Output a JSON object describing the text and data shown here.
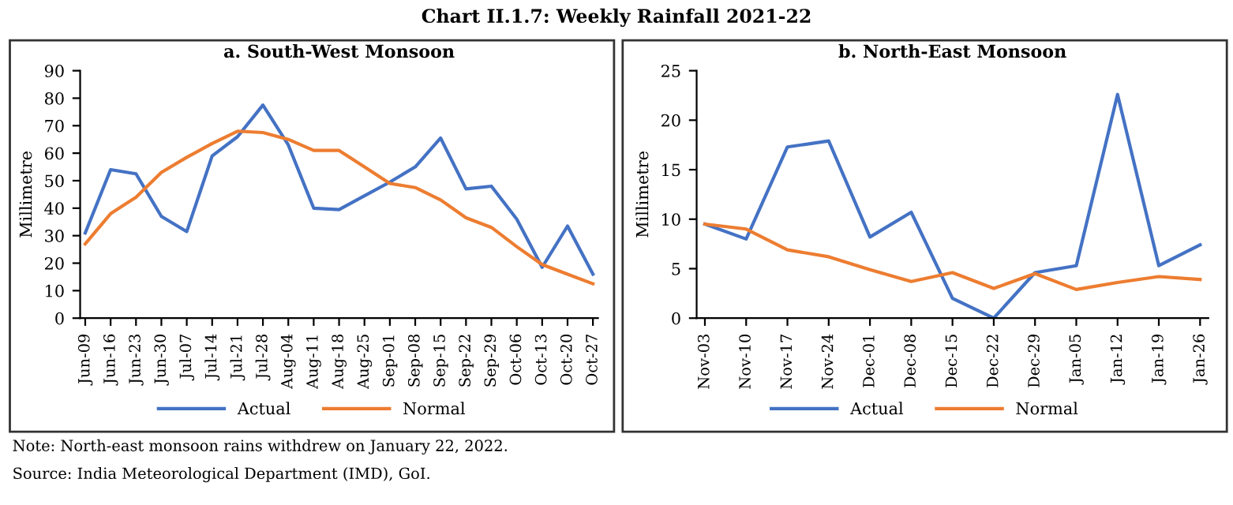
{
  "chart_data": [
    {
      "type": "line",
      "title": "a. South-West Monsoon",
      "ylabel": "Millimetre",
      "annotations": [
        "Chart II.1.7: Weekly Rainfall 2021-22",
        "Note: North-east monsoon rains withdrew on January 22, 2022.",
        "Source: India Meteorological Department (IMD), GoI."
      ],
      "categories": [
        "Jun-09",
        "Jun-16",
        "Jun-23",
        "Jun-30",
        "Jul-07",
        "Jul-14",
        "Jul-21",
        "Jul-28",
        "Aug-04",
        "Aug-11",
        "Aug-18",
        "Aug-25",
        "Sep-01",
        "Sep-08",
        "Sep-15",
        "Sep-22",
        "Sep-29",
        "Oct-06",
        "Oct-13",
        "Oct-20",
        "Oct-27"
      ],
      "series": [
        {
          "name": "Actual",
          "color": "#4472c4",
          "values": [
            31,
            54,
            52.5,
            37,
            31.5,
            59,
            66,
            77.5,
            63,
            40,
            39.5,
            44.5,
            49.5,
            55,
            65.5,
            47,
            48,
            36,
            18.5,
            33.5,
            16
          ]
        },
        {
          "name": "Normal",
          "color": "#ed7d31",
          "values": [
            27,
            38,
            44,
            53,
            58.5,
            63.5,
            68,
            67.5,
            65,
            61,
            61,
            55,
            49,
            47.5,
            43,
            36.5,
            33,
            26,
            19.5,
            16,
            12.5
          ]
        }
      ],
      "ylim": [
        0,
        90
      ],
      "yticks": [
        0,
        10,
        20,
        30,
        40,
        50,
        60,
        70,
        80,
        90
      ],
      "grid": false,
      "legend": "bottom",
      "marker": "none",
      "line_style": "solid"
    },
    {
      "type": "line",
      "title": "b. North-East Monsoon",
      "ylabel": "Millimetre",
      "categories": [
        "Nov-03",
        "Nov-10",
        "Nov-17",
        "Nov-24",
        "Dec-01",
        "Dec-08",
        "Dec-15",
        "Dec-22",
        "Dec-29",
        "Jan-05",
        "Jan-12",
        "Jan-19",
        "Jan-26"
      ],
      "series": [
        {
          "name": "Actual",
          "color": "#4472c4",
          "values": [
            9.5,
            8,
            17.3,
            17.9,
            8.2,
            10.7,
            2,
            0,
            4.6,
            5.3,
            22.6,
            5.3,
            7.4
          ]
        },
        {
          "name": "Normal",
          "color": "#ed7d31",
          "values": [
            9.5,
            9,
            6.9,
            6.2,
            4.9,
            3.7,
            4.6,
            3,
            4.5,
            2.9,
            3.6,
            4.2,
            3.9
          ]
        }
      ],
      "ylim": [
        0,
        25
      ],
      "yticks": [
        0,
        5,
        10,
        15,
        20,
        25
      ],
      "grid": false,
      "legend": "bottom",
      "marker": "none",
      "line_style": "solid"
    }
  ]
}
